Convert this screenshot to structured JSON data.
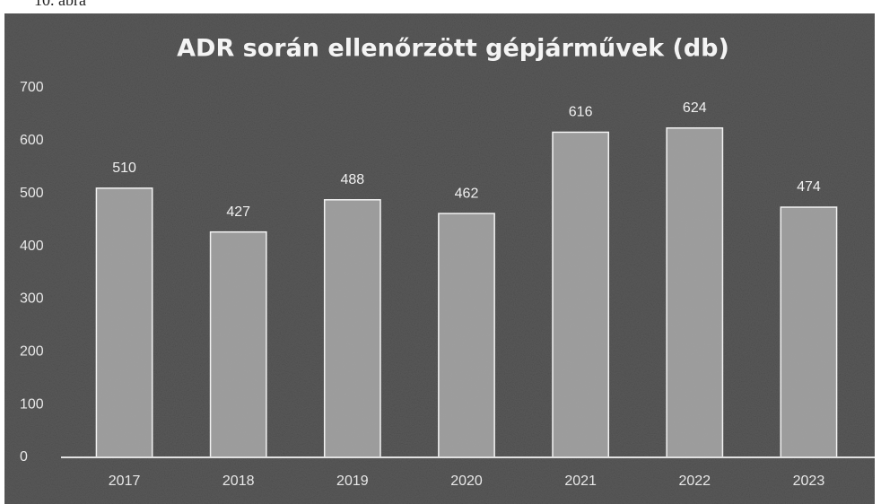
{
  "caption": "10. ábra",
  "chart_data": {
    "type": "bar",
    "title": "ADR során ellenőrzött gépjárművek (db)",
    "categories": [
      "2017",
      "2018",
      "2019",
      "2020",
      "2021",
      "2022",
      "2023"
    ],
    "values": [
      510,
      427,
      488,
      462,
      616,
      624,
      474
    ],
    "color": "#a9a9a9",
    "ylim": [
      0,
      700
    ],
    "yticks": [
      0,
      100,
      200,
      300,
      400,
      500,
      600,
      700
    ],
    "grid": false
  }
}
